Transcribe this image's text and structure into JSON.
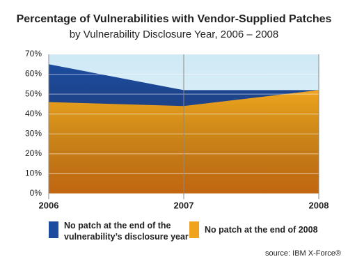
{
  "chart_data": {
    "type": "area",
    "title": "Percentage of Vulnerabilities with Vendor-Supplied Patches",
    "subtitle": "by Vulnerability Disclosure Year, 2006 – 2008",
    "x": [
      2006,
      2007,
      2008
    ],
    "xlim": [
      2006,
      2008
    ],
    "xticks": [
      2006,
      2007,
      2008
    ],
    "ylim": [
      0,
      70
    ],
    "yticks": [
      {
        "value": 0,
        "label": "0%"
      },
      {
        "value": 10,
        "label": "10%"
      },
      {
        "value": 20,
        "label": "20%"
      },
      {
        "value": 30,
        "label": "30%"
      },
      {
        "value": 40,
        "label": "40%"
      },
      {
        "value": 50,
        "label": "50%"
      },
      {
        "value": 60,
        "label": "60%"
      },
      {
        "value": 70,
        "label": "70%"
      }
    ],
    "grid": true,
    "series": [
      {
        "name": "No patch at the end of the vulnerability’s disclosure year",
        "color": "#1d4c9e",
        "values": [
          65,
          52,
          52
        ]
      },
      {
        "name": "No patch at the end of 2008",
        "color": "#f0a41e",
        "values": [
          46,
          44,
          52
        ]
      }
    ],
    "source": "source: IBM X-Force®"
  }
}
